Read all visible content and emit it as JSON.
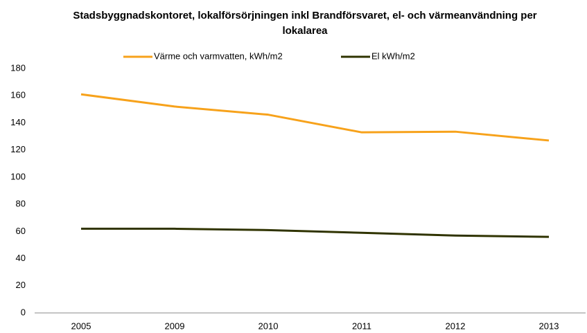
{
  "chart_data": {
    "type": "line",
    "title": "Stadsbyggnadskontoret, lokalförsörjningen inkl Brandförsvaret, el- och värmeanvändning per lokalarea",
    "categories": [
      "2005",
      "2009",
      "2010",
      "2011",
      "2012",
      "2013"
    ],
    "series": [
      {
        "name": "Värme och varmvatten, kWh/m2",
        "color": "#f7a21b",
        "values": [
          161,
          152,
          146,
          133,
          133.5,
          127
        ]
      },
      {
        "name": "El kWh/m2",
        "color": "#2f3300",
        "values": [
          62,
          62,
          61,
          59,
          57,
          56
        ]
      }
    ],
    "ylim": [
      0,
      180
    ],
    "yticks": [
      0,
      20,
      40,
      60,
      80,
      100,
      120,
      140,
      160,
      180
    ],
    "grid": false,
    "legend": "top"
  }
}
